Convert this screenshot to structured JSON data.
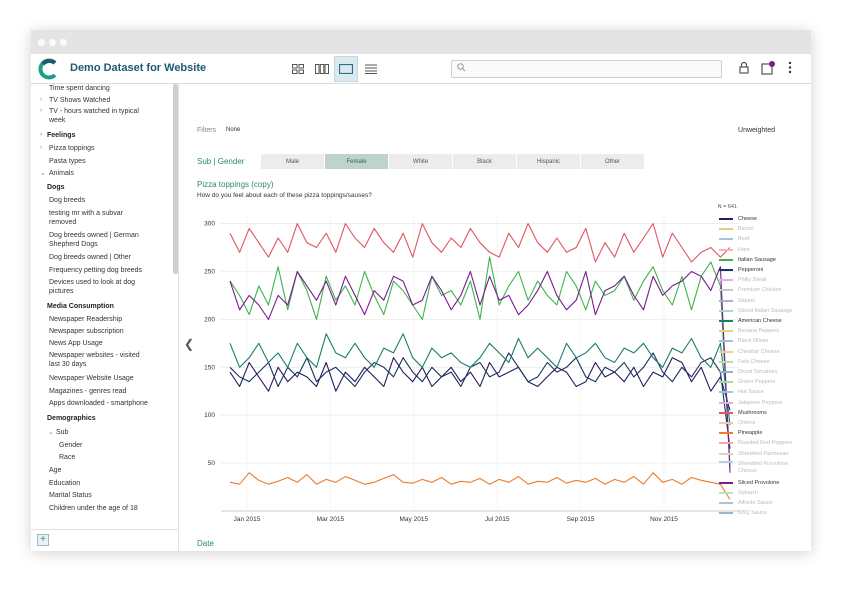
{
  "app": {
    "title": "Demo Dataset for Website"
  },
  "sidebar": {
    "items": [
      {
        "label": "Time spent dancing",
        "type": "var"
      },
      {
        "label": "TV Shows Watched",
        "type": "caret"
      },
      {
        "label": "TV - hours watched in typical week",
        "type": "caret"
      },
      {
        "label": "Feelings",
        "type": "caret-bold"
      },
      {
        "label": "Pizza toppings",
        "type": "caret"
      },
      {
        "label": "Pasta types",
        "type": "var"
      },
      {
        "label": "Animals",
        "type": "open"
      },
      {
        "label": "Dogs",
        "type": "group"
      },
      {
        "label": "Dog breeds",
        "type": "var2"
      },
      {
        "label": "testing mr with a subvar removed",
        "type": "var2"
      },
      {
        "label": "Dog breeds owned | German Shepherd Dogs",
        "type": "var2"
      },
      {
        "label": "Dog breeds owned | Other",
        "type": "var2"
      },
      {
        "label": "Frequency petting dog breeds",
        "type": "var2"
      },
      {
        "label": "Devices used to look at dog pictures",
        "type": "var2"
      },
      {
        "label": "Media Consumption",
        "type": "group"
      },
      {
        "label": "Newspaper Readership",
        "type": "var2"
      },
      {
        "label": "Newspaper subscription",
        "type": "var2"
      },
      {
        "label": "News App Usage",
        "type": "var2"
      },
      {
        "label": "Newspaper websites - visited last 30 days",
        "type": "var2"
      },
      {
        "label": "Newspaper Website Usage",
        "type": "var2"
      },
      {
        "label": "Magazines - genres read",
        "type": "var2"
      },
      {
        "label": "Apps downloaded - smartphone",
        "type": "var2"
      },
      {
        "label": "Demographics",
        "type": "group"
      },
      {
        "label": "Sub",
        "type": "open2"
      },
      {
        "label": "Gender",
        "type": "var3"
      },
      {
        "label": "Race",
        "type": "var3"
      },
      {
        "label": "Age",
        "type": "var2"
      },
      {
        "label": "Education",
        "type": "var2"
      },
      {
        "label": "Marital Status",
        "type": "var2"
      },
      {
        "label": "Children under the age of 18",
        "type": "var2"
      }
    ]
  },
  "filters": {
    "label": "Filters",
    "value": "None"
  },
  "weighting": "Unweighted",
  "tabs": {
    "label": "Sub | Gender",
    "items": [
      "Male",
      "Female",
      "White",
      "Black",
      "Hispanic",
      "Other"
    ],
    "active": 1
  },
  "question": {
    "title": "Pizza toppings (copy)",
    "text": "How do you feel about each of these pizza toppings/sauses?"
  },
  "x_axis_title": "Date",
  "chart_data": {
    "type": "line",
    "n_label": "N = 641",
    "x_ticks": [
      "Jan 2015",
      "Mar 2015",
      "May 2015",
      "Jul 2015",
      "Sep 2015",
      "Nov 2015"
    ],
    "y_ticks": [
      50,
      100,
      150,
      200,
      250,
      300
    ],
    "ylim": [
      0,
      310
    ],
    "x_start": "2015-01-01",
    "x_end": "2015-12-31",
    "grid": true,
    "legend_position": "right",
    "series": [
      {
        "name": "Cheese",
        "color": "#2a1a5e",
        "visible": true,
        "values": [
          145,
          130,
          155,
          140,
          125,
          150,
          135,
          145,
          140,
          130,
          155,
          125,
          145,
          135,
          150,
          140,
          130,
          160,
          145,
          135,
          150,
          130,
          140,
          150,
          135,
          145,
          130,
          155,
          140,
          145,
          150,
          135,
          130,
          140,
          150,
          145,
          130,
          135,
          155,
          140,
          145,
          135,
          150,
          130,
          145,
          140,
          160,
          155,
          135,
          150,
          125,
          140,
          105
        ]
      },
      {
        "name": "Bacon",
        "color": "#e8c98a",
        "visible": false,
        "values": []
      },
      {
        "name": "Beef",
        "color": "#a9c2e0",
        "visible": false,
        "values": []
      },
      {
        "name": "Ham",
        "color": "#f3b5b5",
        "visible": false,
        "values": []
      },
      {
        "name": "Italian Sausage",
        "color": "#3bb54a",
        "visible": true,
        "values": [
          240,
          225,
          205,
          235,
          215,
          255,
          210,
          250,
          230,
          200,
          245,
          220,
          235,
          215,
          250,
          225,
          205,
          240,
          230,
          215,
          200,
          245,
          225,
          230,
          215,
          240,
          200,
          265,
          215,
          235,
          250,
          220,
          240,
          225,
          215,
          250,
          235,
          210,
          240,
          225,
          230,
          245,
          220,
          240,
          255,
          230,
          215,
          245,
          210,
          245,
          260,
          235,
          45
        ]
      },
      {
        "name": "Pepperoni",
        "color": "#17335e",
        "visible": true,
        "values": [
          150,
          140,
          135,
          145,
          155,
          130,
          150,
          140,
          160,
          135,
          145,
          150,
          140,
          130,
          145,
          155,
          150,
          140,
          160,
          145,
          135,
          150,
          140,
          145,
          130,
          150,
          155,
          140,
          145,
          165,
          150,
          135,
          140,
          155,
          145,
          150,
          160,
          140,
          135,
          150,
          145,
          155,
          140,
          150,
          165,
          145,
          135,
          150,
          140,
          155,
          160,
          145,
          65
        ]
      },
      {
        "name": "Philly Steak",
        "color": "#d7b5d9",
        "visible": false,
        "values": []
      },
      {
        "name": "Premium Chicken",
        "color": "#c9c9c9",
        "visible": false,
        "values": []
      },
      {
        "name": "Salami",
        "color": "#b8a8d9",
        "visible": false,
        "values": []
      },
      {
        "name": "Sliced Italian Sausage",
        "color": "#a8d9c4",
        "visible": false,
        "values": []
      },
      {
        "name": "American Cheese",
        "color": "#1a7f6a",
        "visible": true,
        "values": [
          175,
          150,
          160,
          175,
          155,
          165,
          150,
          175,
          160,
          150,
          185,
          165,
          160,
          175,
          160,
          150,
          170,
          165,
          185,
          160,
          150,
          170,
          160,
          165,
          155,
          150,
          160,
          175,
          165,
          155,
          180,
          160,
          170,
          160,
          150,
          175,
          160,
          165,
          175,
          160,
          155,
          170,
          165,
          175,
          160,
          150,
          170,
          165,
          180,
          160,
          150,
          175,
          90
        ]
      },
      {
        "name": "Banana Peppers",
        "color": "#e3d77a",
        "visible": false,
        "values": []
      },
      {
        "name": "Black Olives",
        "color": "#9ac2d0",
        "visible": false,
        "values": []
      },
      {
        "name": "Cheddar Cheese",
        "color": "#f0cf8c",
        "visible": false,
        "values": []
      },
      {
        "name": "Feta Cheese",
        "color": "#c3d9a3",
        "visible": false,
        "values": []
      },
      {
        "name": "Diced Tomatoes",
        "color": "#8fb0cf",
        "visible": false,
        "values": []
      },
      {
        "name": "Green Peppers",
        "color": "#a3d9a8",
        "visible": false,
        "values": []
      },
      {
        "name": "Hot Sauce",
        "color": "#8fc9d6",
        "visible": false,
        "values": []
      },
      {
        "name": "Jalapeno Peppers",
        "color": "#d6b3e0",
        "visible": false,
        "values": []
      },
      {
        "name": "Mushrooms",
        "color": "#e05560",
        "visible": true,
        "values": [
          290,
          270,
          295,
          280,
          265,
          285,
          270,
          300,
          280,
          275,
          290,
          270,
          300,
          285,
          275,
          295,
          280,
          270,
          290,
          265,
          300,
          280,
          270,
          285,
          275,
          295,
          280,
          270,
          265,
          290,
          275,
          300,
          280,
          270,
          285,
          270,
          275,
          295,
          260,
          280,
          265,
          290,
          270,
          285,
          300,
          265,
          290,
          275,
          260,
          270,
          275,
          265,
          275
        ]
      },
      {
        "name": "Onions",
        "color": "#f2c9a0",
        "visible": false,
        "values": []
      },
      {
        "name": "Pineapple",
        "color": "#ef7b2a",
        "visible": true,
        "values": [
          30,
          28,
          40,
          32,
          28,
          31,
          35,
          30,
          38,
          28,
          33,
          30,
          36,
          32,
          28,
          30,
          34,
          38,
          30,
          29,
          33,
          30,
          35,
          28,
          31,
          30,
          34,
          28,
          33,
          30,
          36,
          28,
          31,
          30,
          35,
          29,
          32,
          30,
          34,
          28,
          33,
          30,
          36,
          28,
          40,
          30,
          33,
          28,
          35,
          32,
          30,
          28,
          12
        ]
      },
      {
        "name": "Roasted Red Peppers",
        "color": "#f0a8a8",
        "visible": false,
        "values": []
      },
      {
        "name": "Shredded Parmesan",
        "color": "#e0d3b0",
        "visible": false,
        "values": []
      },
      {
        "name": "Shredded Provolone Cheese",
        "color": "#b0d3e0",
        "visible": false,
        "values": []
      },
      {
        "name": "Sliced Provolone",
        "color": "#7a1a8f",
        "visible": true,
        "values": [
          240,
          210,
          225,
          215,
          200,
          225,
          215,
          250,
          235,
          220,
          240,
          215,
          245,
          225,
          205,
          230,
          220,
          245,
          240,
          215,
          220,
          245,
          230,
          210,
          225,
          250,
          215,
          245,
          220,
          225,
          205,
          215,
          230,
          250,
          225,
          210,
          220,
          250,
          205,
          230,
          235,
          245,
          225,
          210,
          245,
          225,
          235,
          240,
          250,
          245,
          230,
          255,
          40
        ]
      },
      {
        "name": "Spinach",
        "color": "#bde0c8",
        "visible": false,
        "values": []
      },
      {
        "name": "Alfredo Sauce",
        "color": "#a8c4d8",
        "visible": false,
        "values": []
      },
      {
        "name": "BBQ Sauce",
        "color": "#9bb5c9",
        "visible": false,
        "values": []
      }
    ]
  }
}
